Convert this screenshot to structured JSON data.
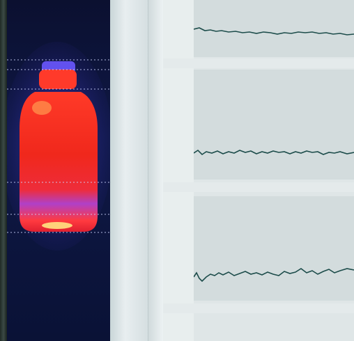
{
  "thermal_view": {
    "subject_icon": "bottle-icon",
    "palette": "ironbow"
  },
  "colors": {
    "background": "#0b1030",
    "hot": "#f0281c",
    "warm": "#ff7a2a",
    "cool": "#8a3fd8",
    "trace": "#1c4c4a"
  },
  "graphs": {
    "count": 3
  }
}
